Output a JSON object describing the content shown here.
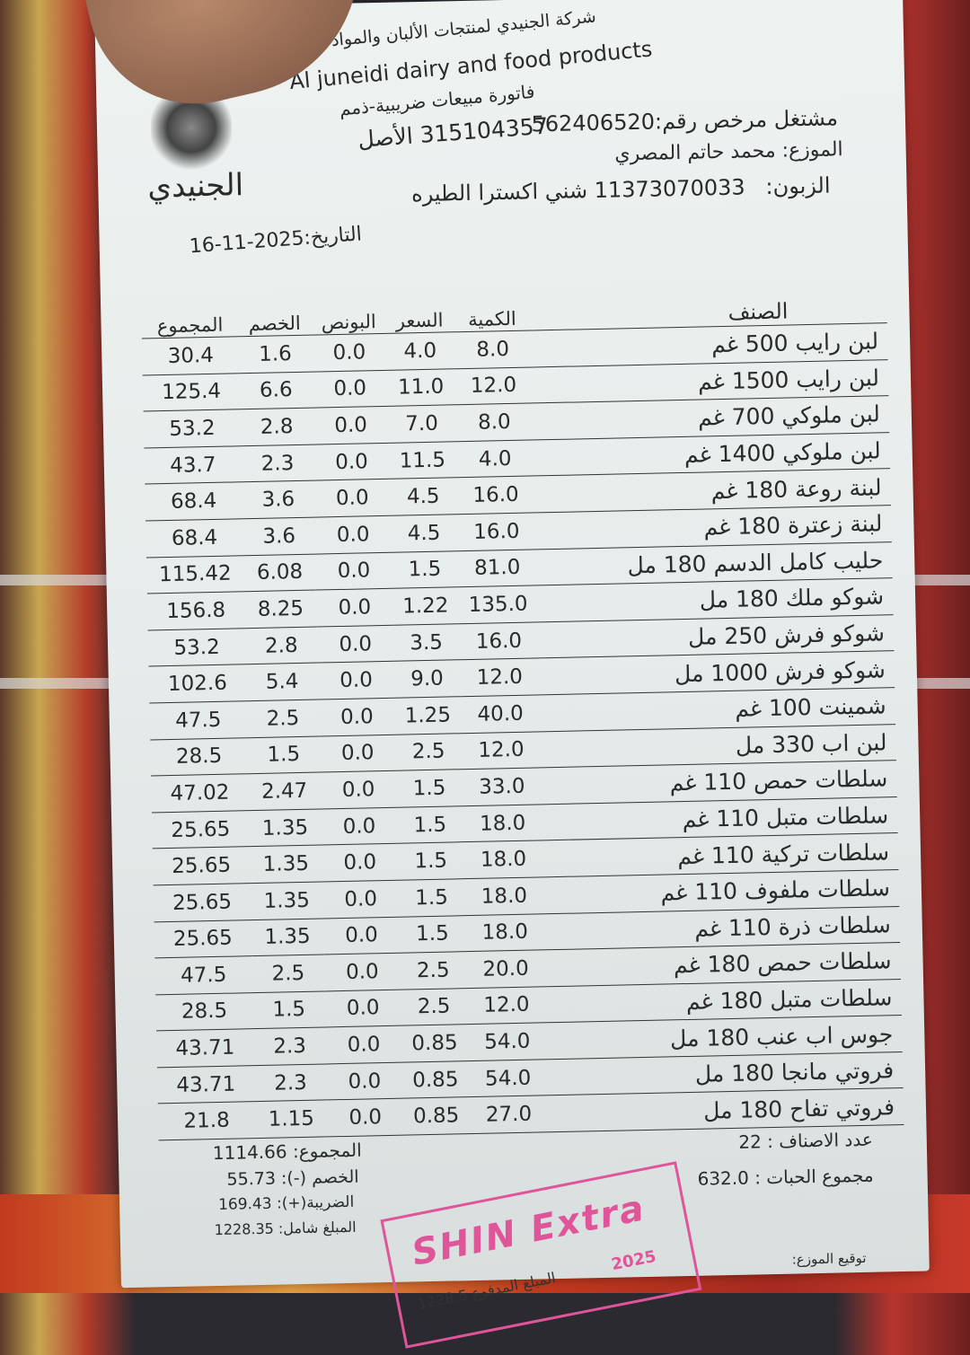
{
  "header": {
    "company_ar": "شركة الجنيدي لمنتجات الألبان والمواد الغذائية",
    "company_en": "Al juneidi dairy and food products",
    "invoice_type": "فاتورة مبيعات ضريبية-ذمم",
    "origin_number": "315104357 الأصل",
    "licensed_operator": "مشتغل مرخص رقم:562406520",
    "distributor_label": "الموزع:",
    "distributor": "محمد حاتم المصري",
    "customer_label": "الزبون:",
    "customer": "11373070033 شني اكسترا الطيره",
    "date": "التاريخ:2025-11-16",
    "logo_text": "الجنيدي"
  },
  "table": {
    "columns": [
      "الصنف",
      "الكمية",
      "السعر",
      "البونص",
      "الخصم",
      "المجموع"
    ],
    "rows": [
      [
        "لبن رايب 500 غم",
        "8.0",
        "4.0",
        "0.0",
        "1.6",
        "30.4"
      ],
      [
        "لبن رايب 1500 غم",
        "12.0",
        "11.0",
        "0.0",
        "6.6",
        "125.4"
      ],
      [
        "لبن ملوكي 700 غم",
        "8.0",
        "7.0",
        "0.0",
        "2.8",
        "53.2"
      ],
      [
        "لبن ملوكي 1400 غم",
        "4.0",
        "11.5",
        "0.0",
        "2.3",
        "43.7"
      ],
      [
        "لبنة روعة 180 غم",
        "16.0",
        "4.5",
        "0.0",
        "3.6",
        "68.4"
      ],
      [
        "لبنة زعترة 180 غم",
        "16.0",
        "4.5",
        "0.0",
        "3.6",
        "68.4"
      ],
      [
        "حليب كامل الدسم 180 مل",
        "81.0",
        "1.5",
        "0.0",
        "6.08",
        "115.42"
      ],
      [
        "شوكو ملك 180 مل",
        "135.0",
        "1.22",
        "0.0",
        "8.25",
        "156.8"
      ],
      [
        "شوكو فرش 250 مل",
        "16.0",
        "3.5",
        "0.0",
        "2.8",
        "53.2"
      ],
      [
        "شوكو فرش 1000 مل",
        "12.0",
        "9.0",
        "0.0",
        "5.4",
        "102.6"
      ],
      [
        "شمينت 100 غم",
        "40.0",
        "1.25",
        "0.0",
        "2.5",
        "47.5"
      ],
      [
        "لبن اب 330 مل",
        "12.0",
        "2.5",
        "0.0",
        "1.5",
        "28.5"
      ],
      [
        "سلطات حمص 110 غم",
        "33.0",
        "1.5",
        "0.0",
        "2.47",
        "47.02"
      ],
      [
        "سلطات متبل 110 غم",
        "18.0",
        "1.5",
        "0.0",
        "1.35",
        "25.65"
      ],
      [
        "سلطات تركية 110 غم",
        "18.0",
        "1.5",
        "0.0",
        "1.35",
        "25.65"
      ],
      [
        "سلطات ملفوف 110 غم",
        "18.0",
        "1.5",
        "0.0",
        "1.35",
        "25.65"
      ],
      [
        "سلطات ذرة 110 غم",
        "18.0",
        "1.5",
        "0.0",
        "1.35",
        "25.65"
      ],
      [
        "سلطات حمص 180 غم",
        "20.0",
        "2.5",
        "0.0",
        "2.5",
        "47.5"
      ],
      [
        "سلطات متبل 180 غم",
        "12.0",
        "2.5",
        "0.0",
        "1.5",
        "28.5"
      ],
      [
        "جوس اب عنب 180 مل",
        "54.0",
        "0.85",
        "0.0",
        "2.3",
        "43.71"
      ],
      [
        "فروتي مانجا 180 مل",
        "54.0",
        "0.85",
        "0.0",
        "2.3",
        "43.71"
      ],
      [
        "فروتي تفاح 180 مل",
        "27.0",
        "0.85",
        "0.0",
        "1.15",
        "21.8"
      ]
    ]
  },
  "footer": {
    "subtotal": "المجموع: 1114.66",
    "discount": "الخصم (-): 55.73",
    "tax": "الضريبة(+): 169.43",
    "total_inclusive": "المبلغ شامل: 1228.35",
    "item_count": "عدد الاصناف : 22",
    "piece_count": "مجموع الحبات : 632.0",
    "signature": "توقيع الموزع:"
  },
  "stamp": {
    "brand": "SHIN Extra",
    "paid_amount": "المبلغ المدفوع 1228.5",
    "year": "2025",
    "color": "#e0559a"
  }
}
